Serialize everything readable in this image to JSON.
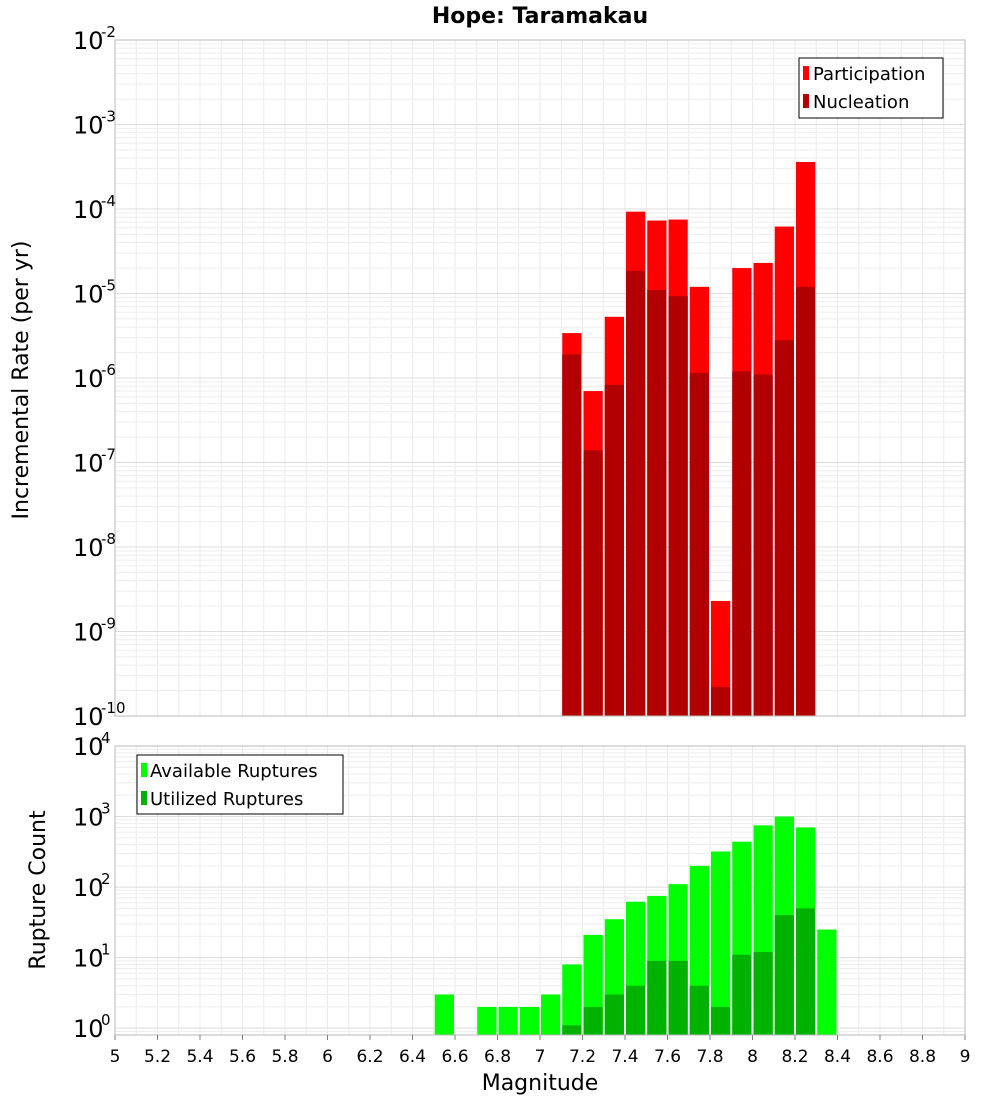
{
  "chart_data": [
    {
      "type": "bar",
      "title": "Hope: Taramakau",
      "xlabel": "",
      "ylabel": "Incremental Rate (per yr)",
      "yscale": "log",
      "ylim": [
        1e-10,
        0.01
      ],
      "xlim": [
        5,
        9
      ],
      "grid": true,
      "legend_position": "top-right",
      "x": [
        7.15,
        7.25,
        7.35,
        7.45,
        7.55,
        7.65,
        7.75,
        7.85,
        7.95,
        8.05,
        8.15,
        8.25
      ],
      "series": [
        {
          "name": "Participation",
          "color": "#ff0000",
          "values": [
            3.4e-06,
            7e-07,
            5.3e-06,
            9.3e-05,
            7.3e-05,
            7.5e-05,
            1.2e-05,
            2.3e-09,
            2e-05,
            2.3e-05,
            6.2e-05,
            0.00036
          ]
        },
        {
          "name": "Nucleation",
          "color": "#b20000",
          "values": [
            1.9e-06,
            1.4e-07,
            8.3e-07,
            1.85e-05,
            1.1e-05,
            9.3e-06,
            1.15e-06,
            2.2e-10,
            1.2e-06,
            1.1e-06,
            2.8e-06,
            1.2e-05
          ]
        }
      ],
      "y_ticks": [
        {
          "base": "10",
          "exp": "-10"
        },
        {
          "base": "10",
          "exp": "-9"
        },
        {
          "base": "10",
          "exp": "-8"
        },
        {
          "base": "10",
          "exp": "-7"
        },
        {
          "base": "10",
          "exp": "-6"
        },
        {
          "base": "10",
          "exp": "-5"
        },
        {
          "base": "10",
          "exp": "-4"
        },
        {
          "base": "10",
          "exp": "-3"
        },
        {
          "base": "10",
          "exp": "-2"
        }
      ]
    },
    {
      "type": "bar",
      "title": "",
      "xlabel": "Magnitude",
      "ylabel": "Rupture Count",
      "yscale": "log",
      "ylim": [
        0.8,
        10000
      ],
      "xlim": [
        5,
        9
      ],
      "grid": true,
      "legend_position": "top-left",
      "x_tick_labels": [
        "5",
        "5.2",
        "5.4",
        "5.6",
        "5.8",
        "6",
        "6.2",
        "6.4",
        "6.6",
        "6.8",
        "7",
        "7.2",
        "7.4",
        "7.6",
        "7.8",
        "8",
        "8.2",
        "8.4",
        "8.6",
        "8.8",
        "9"
      ],
      "x": [
        6.55,
        6.75,
        6.85,
        6.95,
        7.05,
        7.15,
        7.25,
        7.35,
        7.45,
        7.55,
        7.65,
        7.75,
        7.85,
        7.95,
        8.05,
        8.15,
        8.25,
        8.35
      ],
      "series": [
        {
          "name": "Available Ruptures",
          "color": "#00ff00",
          "values": [
            3,
            2,
            2,
            2,
            3,
            8,
            21,
            35,
            62,
            75,
            110,
            200,
            320,
            440,
            750,
            1000,
            700,
            25
          ]
        },
        {
          "name": "Utilized Ruptures",
          "color": "#00b200",
          "values": [
            0,
            0,
            0,
            0,
            0,
            1.1,
            2,
            3,
            4,
            9,
            9,
            4,
            2,
            11,
            12,
            40,
            50,
            0
          ]
        }
      ],
      "y_ticks": [
        {
          "base": "10",
          "exp": "0"
        },
        {
          "base": "10",
          "exp": "1"
        },
        {
          "base": "10",
          "exp": "2"
        },
        {
          "base": "10",
          "exp": "3"
        },
        {
          "base": "10",
          "exp": "4"
        }
      ]
    }
  ]
}
